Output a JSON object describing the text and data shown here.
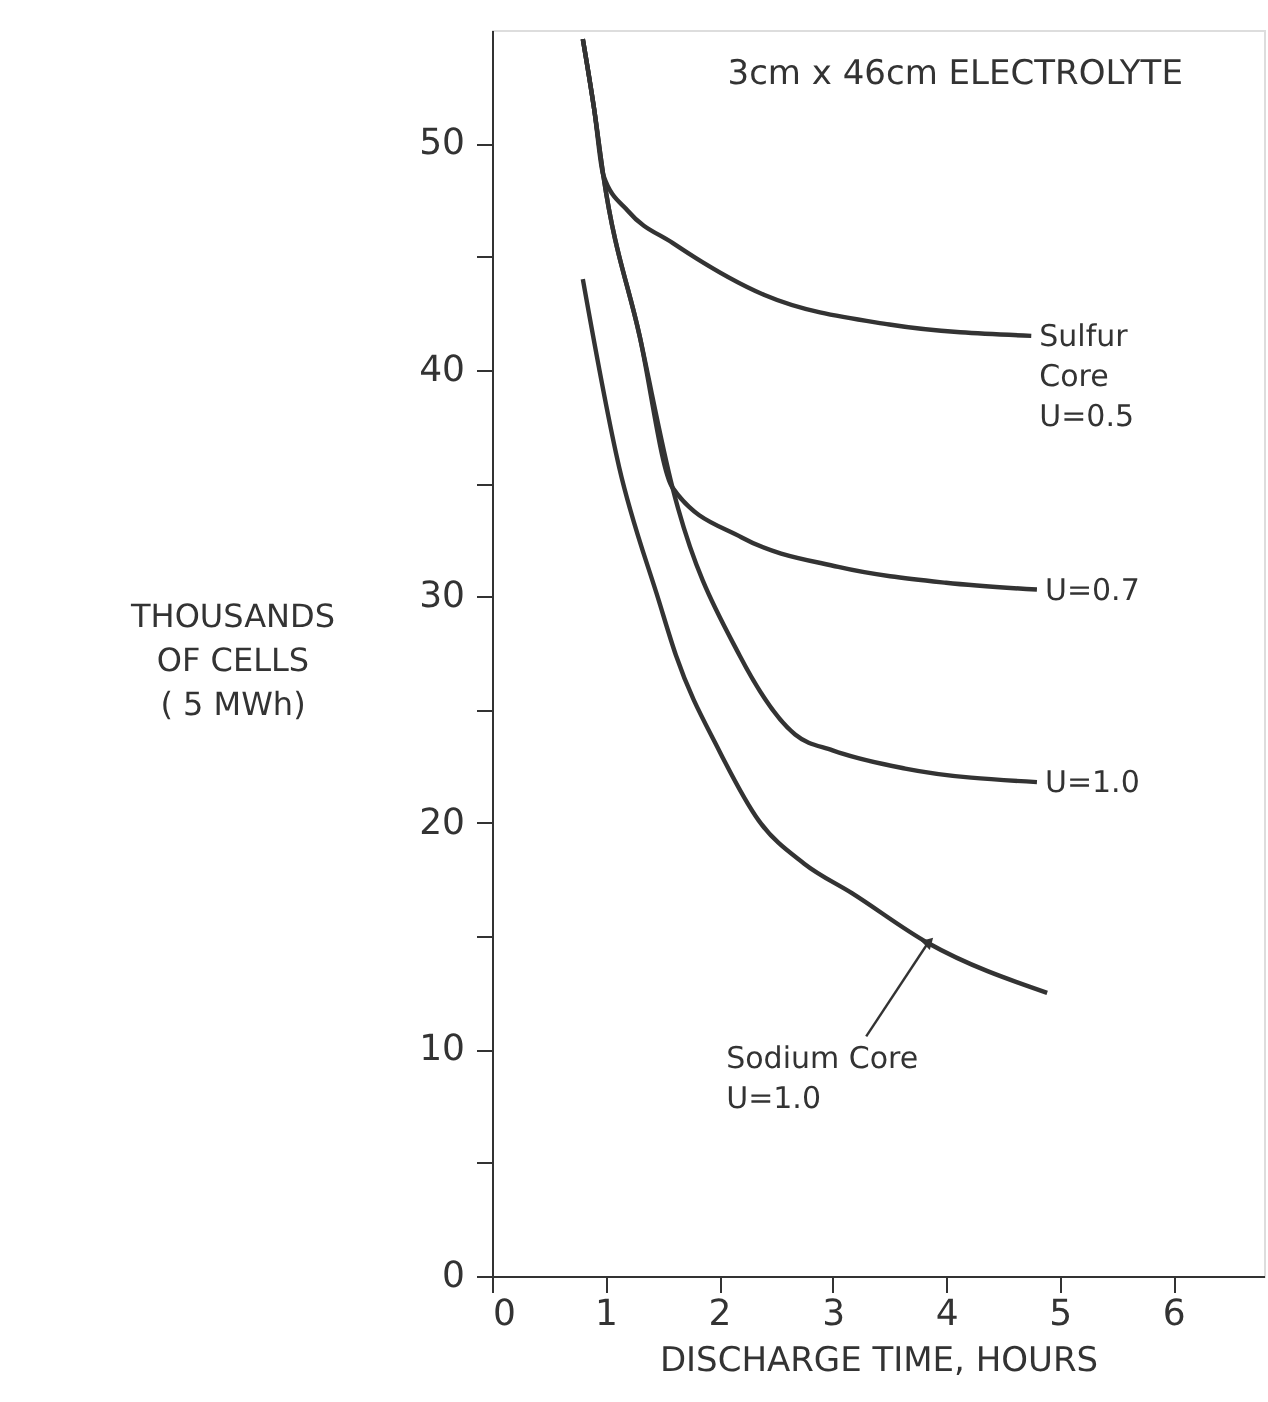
{
  "chart_data": {
    "type": "line",
    "title": "3cm x 46cm ELECTROLYTE",
    "xlabel": "DISCHARGE TIME, HOURS",
    "ylabel": "THOUSANDS\nOF CELLS\n( 5 MWh)",
    "xlim": [
      0,
      6.8
    ],
    "ylim": [
      0,
      55
    ],
    "xticks": [
      0,
      1,
      2,
      3,
      4,
      5,
      6
    ],
    "yticks": [
      0,
      {
        "value": 5,
        "label": null
      },
      10,
      {
        "value": 15,
        "label": null
      },
      20,
      {
        "value": 25,
        "label": null
      },
      30,
      {
        "value": 35,
        "label": null
      },
      40,
      {
        "value": 45,
        "label": null
      },
      50
    ],
    "grid": false,
    "line_style": "solid",
    "marker": "none",
    "series": [
      {
        "color": "#333333",
        "x": [
          0.8,
          0.9,
          0.98,
          1.2,
          1.59,
          2.4,
          3.5,
          4.75
        ],
        "values": [
          54.6,
          51.5,
          48.6,
          47.0,
          45.6,
          43.3,
          42.0,
          41.5
        ]
      },
      {
        "color": "#333333",
        "x": [
          0.8,
          0.9,
          0.98,
          1.3,
          1.59,
          2.2,
          3.05,
          4.0,
          4.8
        ],
        "values": [
          54.6,
          51.5,
          48.6,
          41.5,
          34.8,
          32.6,
          31.3,
          30.6,
          30.3
        ]
      },
      {
        "color": "#333333",
        "x": [
          0.8,
          0.9,
          0.98,
          1.3,
          1.59,
          2.18,
          2.67,
          3.0,
          3.64,
          4.8
        ],
        "values": [
          54.6,
          51.5,
          48.6,
          41.5,
          34.8,
          27.4,
          23.9,
          23.2,
          22.4,
          21.8
        ]
      },
      {
        "color": "#333333",
        "x": [
          0.8,
          1.12,
          1.47,
          1.62,
          2.0,
          2.35,
          2.75,
          3.17,
          3.84,
          4.89
        ],
        "values": [
          44.0,
          35.7,
          29.8,
          27.4,
          23.2,
          20.1,
          18.2,
          16.9,
          14.7,
          12.5
        ]
      }
    ],
    "annotations": [
      {
        "text": "Sulfur\nCore\nU=0.5",
        "x": 4.75,
        "y": 41.5
      },
      {
        "text": "U=0.7",
        "x": 4.8,
        "y": 30.3
      },
      {
        "text": "U=1.0",
        "x": 4.8,
        "y": 21.8
      },
      {
        "text": "Sodium Core\nU=1.0",
        "x": 3.84,
        "y": 14.7
      }
    ]
  }
}
